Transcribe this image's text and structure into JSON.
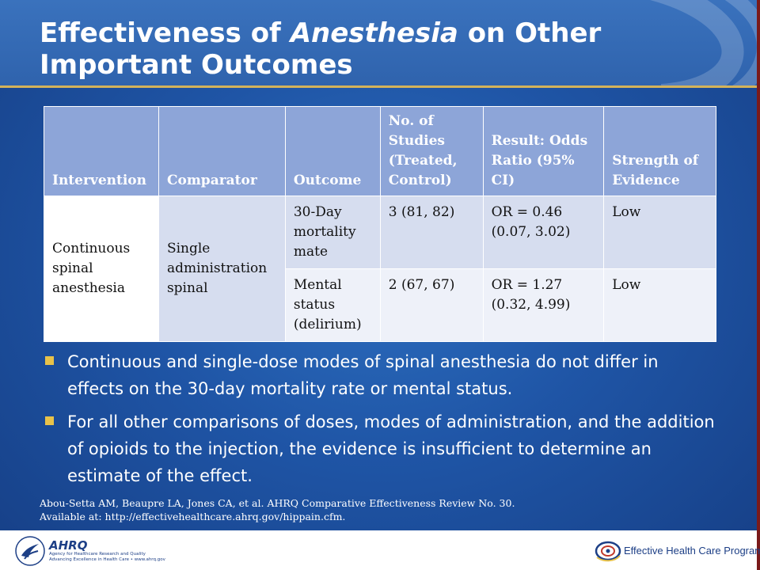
{
  "title": {
    "part1": "Effectiveness of ",
    "italic": "Anesthesia",
    "part2": " on Other Important Outcomes"
  },
  "table": {
    "headers": [
      "Intervention",
      "Comparator",
      "Outcome",
      "No. of Studies (Treated, Control)",
      "Result: Odds Ratio (95% CI)",
      "Strength of Evidence"
    ],
    "intervention": "Continuous spinal anesthesia",
    "comparator": "Single administration spinal",
    "rows": [
      {
        "outcome": "30-Day mortality mate",
        "studies": "3  (81, 82)",
        "result": "OR = 0.46 (0.07, 3.02)",
        "strength": "Low"
      },
      {
        "outcome": "Mental status (delirium)",
        "studies": "2 (67, 67)",
        "result": "OR = 1.27 (0.32, 4.99)",
        "strength": "Low"
      }
    ]
  },
  "bullets": [
    "Continuous and single-dose modes of spinal anesthesia do not differ in effects on the 30-day mortality rate or mental status.",
    "For all other comparisons of doses, modes of administration, and the addition of opioids to the injection, the evidence is insufficient to determine an estimate of the effect."
  ],
  "citation": {
    "line1": "Abou-Setta AM, Beaupre LA, Jones CA, et al. AHRQ Comparative Effectiveness Review No. 30.",
    "line2": "Available at:  http://effectivehealthcare.ahrq.gov/hippain.cfm."
  },
  "footer": {
    "ahrq_name": "AHRQ",
    "ahrq_sub1": "Agency for Healthcare Research and Quality",
    "ahrq_sub2": "Advancing Excellence in Health Care • www.ahrq.gov",
    "ehc_name": "Effective Health Care Program"
  },
  "colors": {
    "background": "#1f55a6",
    "header_fill": "#8da5d8",
    "row_fill": "#d6ddef",
    "bullet_square": "#e8c24a",
    "title_rule": "#d4b35a"
  },
  "icons": [
    "hhs-eagle-icon",
    "ahrq-logo-icon",
    "effective-health-care-logo-icon"
  ]
}
